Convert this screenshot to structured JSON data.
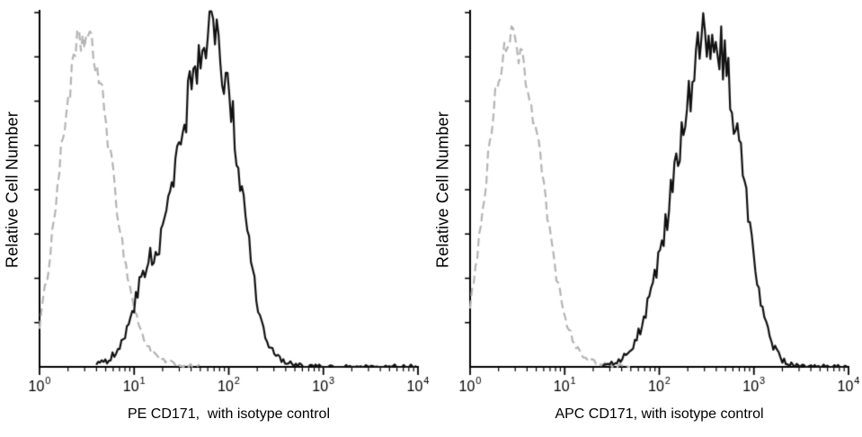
{
  "figure": {
    "background": "#ffffff",
    "axis_color": "#000000",
    "text_color": "#000000"
  },
  "chart_data": [
    {
      "type": "area",
      "subtype": "flow-cytometry-histogram",
      "title": "",
      "xlabel": "PE CD171,  with isotype control",
      "ylabel": "Relative Cell Number",
      "x_scale": "log",
      "xlim_log": [
        0,
        4
      ],
      "ylim": [
        0,
        1
      ],
      "grid": false,
      "legend": "none",
      "x_ticks": [
        {
          "text": "10",
          "sup": "0"
        },
        {
          "text": "10",
          "sup": "1"
        },
        {
          "text": "10",
          "sup": "2"
        },
        {
          "text": "10",
          "sup": "3"
        },
        {
          "text": "10",
          "sup": "4"
        }
      ],
      "series": [
        {
          "name": "isotype control",
          "color": "#b4b4b4",
          "line": "dashed",
          "x_log": [
            0,
            0.1,
            0.2,
            0.3,
            0.4,
            0.5,
            0.6,
            0.7,
            0.8,
            0.9,
            1.0,
            1.1,
            1.2,
            1.3,
            1.4,
            1.5,
            1.6,
            1.7
          ],
          "y": [
            0.12,
            0.3,
            0.55,
            0.78,
            0.93,
            0.96,
            0.88,
            0.72,
            0.5,
            0.31,
            0.17,
            0.08,
            0.04,
            0.02,
            0.01,
            0.005,
            0.002,
            0.001
          ]
        },
        {
          "name": "PE CD171",
          "color": "#121212",
          "line": "solid",
          "x_log": [
            0.6,
            0.7,
            0.8,
            0.9,
            1.0,
            1.1,
            1.2,
            1.3,
            1.4,
            1.5,
            1.6,
            1.7,
            1.8,
            1.9,
            2.0,
            2.1,
            2.2,
            2.3,
            2.4,
            2.5,
            2.6,
            2.8,
            3.0,
            3.5,
            4.0
          ],
          "y": [
            0.005,
            0.015,
            0.04,
            0.09,
            0.18,
            0.28,
            0.33,
            0.38,
            0.5,
            0.66,
            0.82,
            0.93,
            0.97,
            0.92,
            0.8,
            0.6,
            0.38,
            0.19,
            0.08,
            0.03,
            0.01,
            0.003,
            0.0,
            0.0,
            0.0
          ]
        }
      ]
    },
    {
      "type": "area",
      "subtype": "flow-cytometry-histogram",
      "title": "",
      "xlabel": "APC CD171, with isotype control",
      "ylabel": "Relative Cell Number",
      "x_scale": "log",
      "xlim_log": [
        0,
        4
      ],
      "ylim": [
        0,
        1
      ],
      "grid": false,
      "legend": "none",
      "x_ticks": [
        {
          "text": "10",
          "sup": "0"
        },
        {
          "text": "10",
          "sup": "1"
        },
        {
          "text": "10",
          "sup": "2"
        },
        {
          "text": "10",
          "sup": "3"
        },
        {
          "text": "10",
          "sup": "4"
        }
      ],
      "series": [
        {
          "name": "isotype control",
          "color": "#b4b4b4",
          "line": "dashed",
          "x_log": [
            0,
            0.1,
            0.2,
            0.3,
            0.4,
            0.5,
            0.6,
            0.7,
            0.8,
            0.9,
            1.0,
            1.1,
            1.2,
            1.3,
            1.4,
            1.5,
            1.6,
            1.7
          ],
          "y": [
            0.18,
            0.38,
            0.62,
            0.85,
            0.96,
            0.93,
            0.84,
            0.68,
            0.47,
            0.28,
            0.14,
            0.07,
            0.03,
            0.015,
            0.007,
            0.003,
            0.001,
            0.0
          ]
        },
        {
          "name": "APC CD171",
          "color": "#121212",
          "line": "solid",
          "x_log": [
            1.4,
            1.5,
            1.6,
            1.7,
            1.8,
            1.9,
            2.0,
            2.1,
            2.2,
            2.3,
            2.4,
            2.5,
            2.6,
            2.7,
            2.8,
            2.9,
            3.0,
            3.1,
            3.2,
            3.3,
            3.4,
            3.6,
            3.8,
            4.0
          ],
          "y": [
            0.003,
            0.01,
            0.02,
            0.05,
            0.11,
            0.2,
            0.32,
            0.46,
            0.62,
            0.77,
            0.9,
            0.97,
            0.94,
            0.88,
            0.72,
            0.52,
            0.31,
            0.15,
            0.06,
            0.02,
            0.005,
            0.0,
            0.0,
            0.0
          ]
        }
      ]
    }
  ]
}
